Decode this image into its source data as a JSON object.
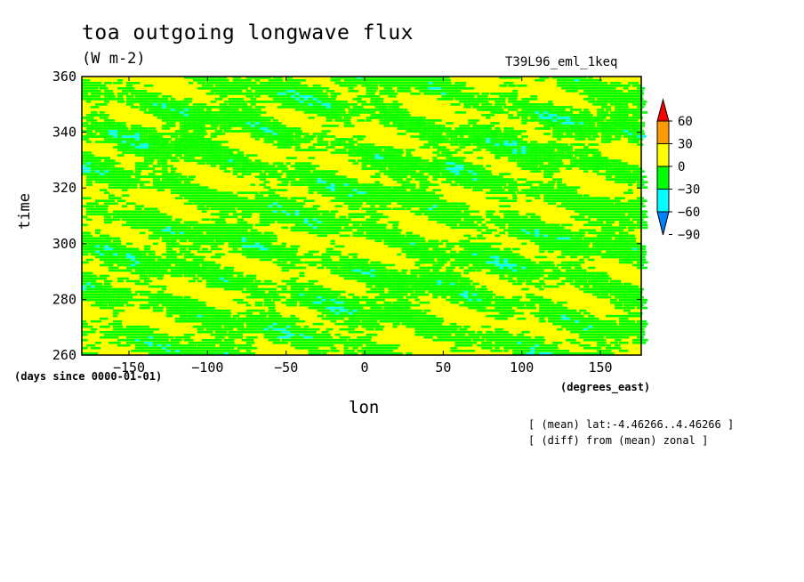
{
  "chart_data": {
    "type": "heatmap",
    "title": "toa outgoing longwave flux",
    "units": "(W m-2)",
    "run_label": "T39L96_eml_1keq",
    "xlabel": "lon",
    "ylabel": "time",
    "x_units": "(degrees_east)",
    "time_units": "(days since 0000-01-01)",
    "xlim": [
      -180,
      176
    ],
    "ylim": [
      260,
      360
    ],
    "x_ticks": [
      -150,
      -100,
      -50,
      0,
      50,
      100,
      150
    ],
    "y_ticks": [
      260,
      280,
      300,
      320,
      340,
      360
    ],
    "notes": [
      "[ (mean) lat:-4.46266..4.46266 ]",
      "[ (diff) from (mean) zonal ]"
    ],
    "colorbar": {
      "levels": [
        -90,
        -60,
        -30,
        0,
        30,
        60
      ],
      "labels": [
        "60",
        "30",
        "0",
        "-30",
        "-60",
        "-90"
      ],
      "colors": [
        "#0080ff",
        "#00ffff",
        "#00ff00",
        "#ffff00",
        "#ff9900",
        "#ff0000"
      ]
    },
    "field_description": "zonal-anomaly OLR on longitude-time; mostly 0..30 (yellow) and -30..0 (green) with sparse -60..-30 (cyan) patches; eastward-propagating streaks"
  }
}
